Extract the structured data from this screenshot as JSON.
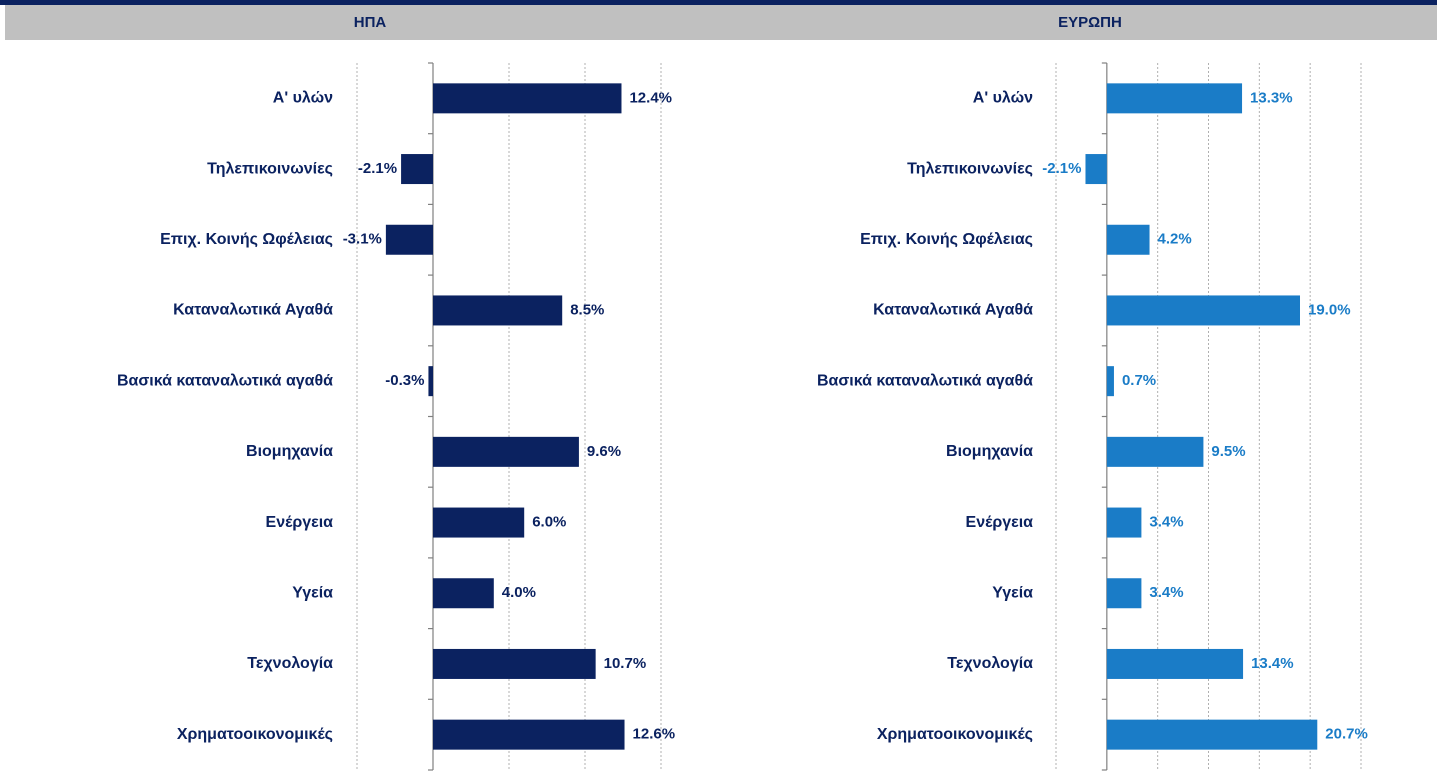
{
  "chart_data": [
    {
      "type": "barh",
      "title": "ΗΠΑ",
      "categories": [
        "Α' υλών",
        "Τηλεπικοινωνίες",
        "Επιχ. Κοινής Ωφέλειας",
        "Καταναλωτικά Αγαθά",
        "Βασικά καταναλωτικά αγαθά",
        "Βιομηχανία",
        "Ενέργεια",
        "Υγεία",
        "Τεχνολογία",
        "Χρηματοοικονομικές"
      ],
      "values": [
        12.4,
        -2.1,
        -3.1,
        8.5,
        -0.3,
        9.6,
        6.0,
        4.0,
        10.7,
        12.6
      ],
      "value_labels": [
        "12.4%",
        "-2.1%",
        "-3.1%",
        "8.5%",
        "-0.3%",
        "9.6%",
        "6.0%",
        "4.0%",
        "10.7%",
        "12.6%"
      ],
      "color": "#0b2260",
      "xlim": [
        -5,
        15
      ],
      "xticks": [
        -5,
        0,
        5,
        10,
        15
      ],
      "grid": true
    },
    {
      "type": "barh",
      "title": "ΕΥΡΩΠΗ",
      "categories": [
        "Α' υλών",
        "Τηλεπικοινωνίες",
        "Επιχ. Κοινής Ωφέλειας",
        "Καταναλωτικά Αγαθά",
        "Βασικά καταναλωτικά αγαθά",
        "Βιομηχανία",
        "Ενέργεια",
        "Υγεία",
        "Τεχνολογία",
        "Χρηματοοικονομικές"
      ],
      "values": [
        13.3,
        -2.1,
        4.2,
        19.0,
        0.7,
        9.5,
        3.4,
        3.4,
        13.4,
        20.7
      ],
      "value_labels": [
        "13.3%",
        "-2.1%",
        "4.2%",
        "19.0%",
        "0.7%",
        "9.5%",
        "3.4%",
        "3.4%",
        "13.4%",
        "20.7%"
      ],
      "color": "#1a7cc7",
      "xlim": [
        -5,
        25
      ],
      "xticks": [
        -5,
        0,
        5,
        10,
        15,
        20,
        25
      ],
      "grid": true
    }
  ]
}
